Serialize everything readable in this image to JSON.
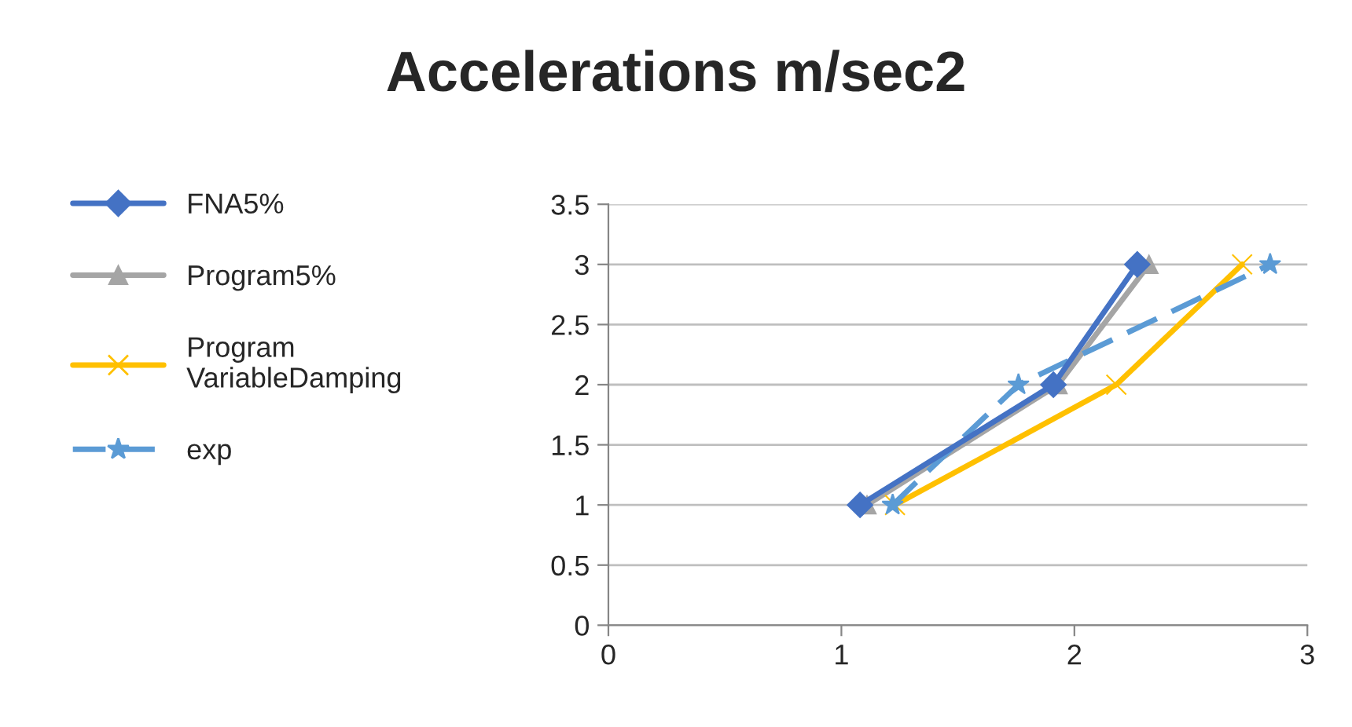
{
  "chart_data": {
    "type": "line",
    "title": "Accelerations m/sec2",
    "series": [
      {
        "name": "FNA5%",
        "color": "#4472c4",
        "marker": "diamond",
        "line_style": "solid",
        "x": [
          1.08,
          1.91,
          2.27
        ],
        "values": [
          1,
          2,
          3
        ]
      },
      {
        "name": "Program5%",
        "color": "#a5a5a5",
        "marker": "triangle",
        "line_style": "solid",
        "x": [
          1.11,
          1.93,
          2.32
        ],
        "values": [
          1,
          2,
          3
        ]
      },
      {
        "name": "Program\nVariableDamping",
        "color": "#ffc000",
        "marker": "cross",
        "line_style": "solid",
        "x": [
          1.23,
          2.18,
          2.72
        ],
        "values": [
          1,
          2,
          3
        ]
      },
      {
        "name": "exp",
        "color": "#5b9bd5",
        "marker": "star",
        "line_style": "dashed",
        "x": [
          1.22,
          1.76,
          2.84
        ],
        "values": [
          1,
          2,
          3
        ]
      }
    ],
    "xlim": [
      0,
      3
    ],
    "xticks": [
      0,
      1,
      2,
      3
    ],
    "ylim": [
      0,
      3.5
    ],
    "yticks": [
      0,
      0.5,
      1,
      1.5,
      2,
      2.5,
      3,
      3.5
    ],
    "grid": "y",
    "legend": "left"
  }
}
